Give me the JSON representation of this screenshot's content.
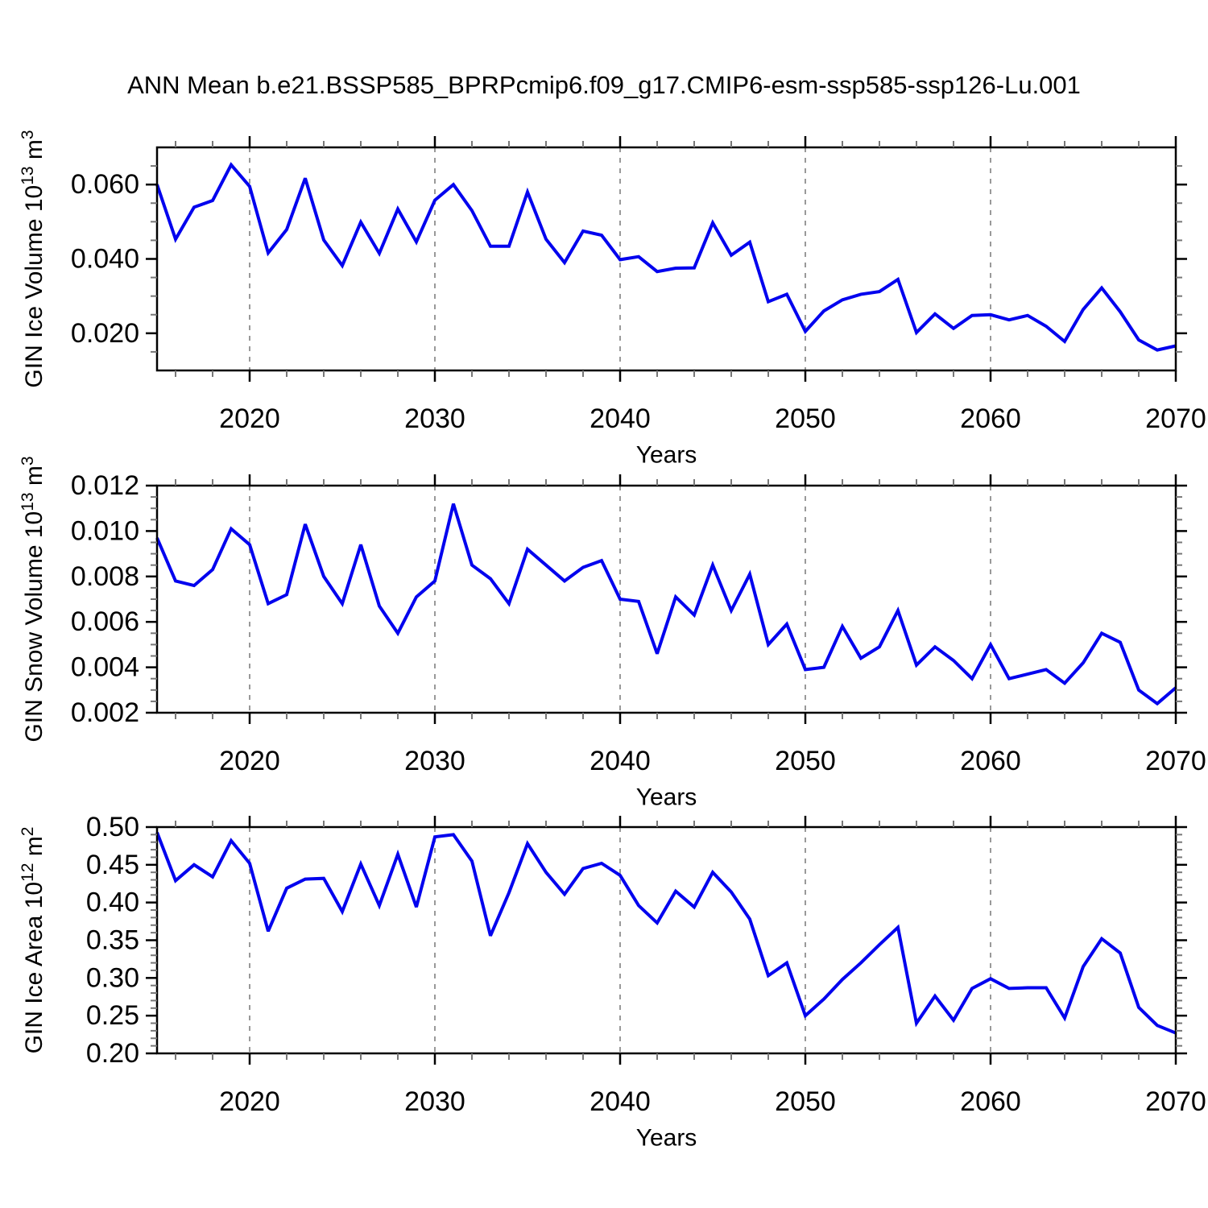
{
  "title": "ANN Mean b.e21.BSSP585_BPRPcmip6.f09_g17.CMIP6-esm-ssp585-ssp126-Lu.001",
  "colors": {
    "line": "#0202EE",
    "grid": "#999999",
    "axis": "#000000",
    "minor_tick": "#777777",
    "text": "#000000"
  },
  "x_axis": {
    "label": "Years",
    "range": [
      2015,
      2070
    ],
    "major_ticks": [
      2020,
      2030,
      2040,
      2050,
      2060,
      2070
    ],
    "tick_labels": [
      "2020",
      "2030",
      "2040",
      "2050",
      "2060",
      "2070"
    ],
    "minor_step": 2,
    "grid_years": [
      2020,
      2030,
      2040,
      2050,
      2060
    ]
  },
  "years": [
    2015,
    2016,
    2017,
    2018,
    2019,
    2020,
    2021,
    2022,
    2023,
    2024,
    2025,
    2026,
    2027,
    2028,
    2029,
    2030,
    2031,
    2032,
    2033,
    2034,
    2035,
    2036,
    2037,
    2038,
    2039,
    2040,
    2041,
    2042,
    2043,
    2044,
    2045,
    2046,
    2047,
    2048,
    2049,
    2050,
    2051,
    2052,
    2053,
    2054,
    2055,
    2056,
    2057,
    2058,
    2059,
    2060,
    2061,
    2062,
    2063,
    2064,
    2065,
    2066,
    2067,
    2068,
    2069,
    2070
  ],
  "chart_data": [
    {
      "type": "line",
      "name": "gin-ice-volume",
      "ylabel_text": "GIN Ice Volume 10^13 m^3",
      "ylabel_parts": [
        {
          "t": "GIN Ice Volume 10"
        },
        {
          "t": "13",
          "sup": true
        },
        {
          "t": " m"
        },
        {
          "t": "3",
          "sup": true
        }
      ],
      "xlabel": "Years",
      "ylim": [
        0.01,
        0.07
      ],
      "ytick_values": [
        0.02,
        0.04,
        0.06
      ],
      "ytick_labels": [
        "0.020",
        "0.040",
        "0.060"
      ],
      "yminor_step": 0.005,
      "grid": "vertical-dashed",
      "values": [
        0.06,
        0.0453,
        0.0539,
        0.0557,
        0.0653,
        0.0595,
        0.0416,
        0.0479,
        0.0617,
        0.0451,
        0.0382,
        0.0499,
        0.0415,
        0.0534,
        0.0446,
        0.0558,
        0.06,
        0.053,
        0.0434,
        0.0434,
        0.058,
        0.0453,
        0.039,
        0.0475,
        0.0464,
        0.0398,
        0.0406,
        0.0366,
        0.0375,
        0.0376,
        0.0497,
        0.041,
        0.0445,
        0.0285,
        0.0305,
        0.0205,
        0.026,
        0.029,
        0.0305,
        0.0312,
        0.0345,
        0.0202,
        0.0252,
        0.0213,
        0.0248,
        0.025,
        0.0236,
        0.0248,
        0.0219,
        0.0178,
        0.0264,
        0.0322,
        0.0258,
        0.0182,
        0.0155,
        0.0166
      ]
    },
    {
      "type": "line",
      "name": "gin-snow-volume",
      "ylabel_text": "GIN Snow Volume 10^13 m^3",
      "ylabel_parts": [
        {
          "t": "GIN Snow Volume 10"
        },
        {
          "t": "13",
          "sup": true
        },
        {
          "t": " m"
        },
        {
          "t": "3",
          "sup": true
        }
      ],
      "xlabel": "Years",
      "ylim": [
        0.002,
        0.012
      ],
      "ytick_values": [
        0.002,
        0.004,
        0.006,
        0.008,
        0.01,
        0.012
      ],
      "ytick_labels": [
        "0.002",
        "0.004",
        "0.006",
        "0.008",
        "0.010",
        "0.012"
      ],
      "yminor_step": 0.0005,
      "grid": "vertical-dashed",
      "values": [
        0.0097,
        0.0078,
        0.0076,
        0.0083,
        0.0101,
        0.0094,
        0.0068,
        0.0072,
        0.0103,
        0.008,
        0.0068,
        0.0094,
        0.0067,
        0.0055,
        0.0071,
        0.0078,
        0.0112,
        0.0085,
        0.0079,
        0.0068,
        0.0092,
        0.0085,
        0.0078,
        0.0084,
        0.0087,
        0.007,
        0.0069,
        0.0046,
        0.0071,
        0.0063,
        0.0085,
        0.0065,
        0.0081,
        0.005,
        0.0059,
        0.0039,
        0.004,
        0.0058,
        0.0044,
        0.0049,
        0.0065,
        0.0041,
        0.0049,
        0.0043,
        0.0035,
        0.005,
        0.0035,
        0.0037,
        0.0039,
        0.0033,
        0.0042,
        0.0055,
        0.0051,
        0.003,
        0.0024,
        0.0031
      ]
    },
    {
      "type": "line",
      "name": "gin-ice-area",
      "ylabel_text": "GIN Ice Area 10^12 m^2",
      "ylabel_parts": [
        {
          "t": "GIN Ice Area 10"
        },
        {
          "t": "12",
          "sup": true
        },
        {
          "t": " m"
        },
        {
          "t": "2",
          "sup": true
        }
      ],
      "xlabel": "Years",
      "ylim": [
        0.2,
        0.5
      ],
      "ytick_values": [
        0.2,
        0.25,
        0.3,
        0.35,
        0.4,
        0.45,
        0.5
      ],
      "ytick_labels": [
        "0.20",
        "0.25",
        "0.30",
        "0.35",
        "0.40",
        "0.45",
        "0.50"
      ],
      "yminor_step": 0.01,
      "grid": "vertical-dashed",
      "values": [
        0.493,
        0.429,
        0.45,
        0.434,
        0.482,
        0.452,
        0.362,
        0.419,
        0.431,
        0.432,
        0.388,
        0.451,
        0.396,
        0.464,
        0.394,
        0.487,
        0.49,
        0.455,
        0.356,
        0.413,
        0.478,
        0.44,
        0.411,
        0.445,
        0.452,
        0.436,
        0.396,
        0.373,
        0.415,
        0.394,
        0.44,
        0.414,
        0.378,
        0.303,
        0.32,
        0.25,
        0.272,
        0.298,
        0.32,
        0.344,
        0.367,
        0.24,
        0.276,
        0.244,
        0.286,
        0.299,
        0.286,
        0.287,
        0.287,
        0.247,
        0.315,
        0.352,
        0.333,
        0.261,
        0.237,
        0.227
      ]
    }
  ]
}
